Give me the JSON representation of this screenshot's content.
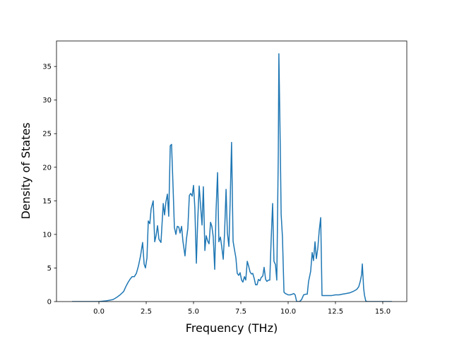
{
  "chart_data": {
    "type": "line",
    "xlabel": "Frequency (THz)",
    "ylabel": "Density of States",
    "xlim": [
      -2.24,
      16.27
    ],
    "ylim": [
      0,
      38.8
    ],
    "xticks": [
      {
        "value": 0,
        "label": "0.0"
      },
      2.5,
      {
        "value": 5,
        "label": "5.0"
      },
      7.5,
      {
        "value": 10,
        "label": "10.0"
      },
      12.5,
      {
        "value": 15,
        "label": "15.0"
      }
    ],
    "yticks": [
      0,
      5,
      10,
      15,
      20,
      25,
      30,
      35
    ],
    "grid": false,
    "series": [
      {
        "color": "#1f77b4",
        "x": [
          -1.42,
          0,
          0.37,
          0.75,
          0.93,
          1.12,
          1.31,
          1.42,
          1.53,
          1.64,
          1.75,
          1.87,
          1.98,
          2.09,
          2.2,
          2.31,
          2.39,
          2.46,
          2.54,
          2.61,
          2.69,
          2.76,
          2.87,
          2.95,
          3.02,
          3.1,
          3.17,
          3.28,
          3.4,
          3.47,
          3.54,
          3.62,
          3.69,
          3.77,
          3.84,
          3.92,
          3.99,
          4.07,
          4.14,
          4.22,
          4.29,
          4.37,
          4.44,
          4.55,
          4.63,
          4.7,
          4.78,
          4.85,
          4.93,
          5.0,
          5.07,
          5.15,
          5.22,
          5.3,
          5.37,
          5.45,
          5.52,
          5.6,
          5.67,
          5.75,
          5.82,
          5.9,
          5.97,
          6.04,
          6.12,
          6.19,
          6.27,
          6.34,
          6.42,
          6.49,
          6.57,
          6.64,
          6.72,
          6.79,
          6.87,
          6.94,
          7.01,
          7.09,
          7.16,
          7.24,
          7.31,
          7.39,
          7.46,
          7.54,
          7.61,
          7.69,
          7.76,
          7.84,
          7.91,
          7.99,
          8.06,
          8.13,
          8.21,
          8.28,
          8.36,
          8.43,
          8.51,
          8.58,
          8.66,
          8.73,
          8.81,
          8.88,
          8.96,
          9.03,
          9.1,
          9.18,
          9.25,
          9.33,
          9.4,
          9.48,
          9.51,
          9.59,
          9.63,
          9.7,
          9.78,
          9.85,
          9.93,
          10.0,
          10.11,
          10.22,
          10.3,
          10.37,
          10.45,
          10.6,
          10.71,
          10.82,
          10.93,
          11.01,
          11.08,
          11.19,
          11.27,
          11.34,
          11.42,
          11.49,
          11.57,
          11.64,
          11.72,
          11.79,
          11.94,
          12.31,
          12.5,
          12.69,
          12.87,
          13.06,
          13.25,
          13.43,
          13.62,
          13.73,
          13.81,
          13.88,
          13.92,
          13.99,
          14.03,
          14.1,
          14.18,
          15.48
        ],
        "values": [
          0,
          0,
          0.1,
          0.3,
          0.6,
          1.0,
          1.5,
          2.2,
          2.8,
          3.3,
          3.7,
          3.7,
          4.2,
          5.3,
          6.8,
          8.8,
          5.6,
          5.0,
          6.5,
          12.0,
          11.6,
          13.8,
          15.0,
          8.9,
          9.8,
          11.3,
          9.3,
          8.8,
          14.6,
          12.9,
          14.8,
          16.0,
          12.7,
          23.2,
          23.4,
          17.0,
          11.0,
          10.0,
          11.2,
          11.1,
          10.2,
          11.2,
          9.0,
          6.8,
          9.4,
          10.9,
          15.8,
          16.1,
          15.7,
          17.3,
          14.0,
          5.7,
          11.9,
          17.2,
          14.4,
          11.4,
          17.1,
          7.6,
          9.8,
          9.0,
          8.6,
          11.8,
          11.2,
          9.7,
          4.8,
          13.4,
          19.2,
          8.9,
          9.6,
          8.2,
          6.3,
          10.2,
          16.7,
          10.2,
          8.2,
          15.3,
          23.7,
          9.0,
          7.8,
          6.5,
          4.2,
          3.9,
          4.3,
          3.2,
          2.9,
          3.7,
          3.2,
          6.0,
          5.3,
          4.4,
          4.1,
          4.2,
          3.4,
          2.5,
          2.5,
          3.3,
          3.1,
          3.6,
          3.8,
          5.1,
          3.3,
          3.0,
          3.2,
          3.2,
          9.0,
          14.6,
          6.0,
          5.5,
          3.2,
          22.0,
          36.9,
          22.0,
          13.0,
          9.6,
          1.4,
          1.2,
          1.1,
          1.0,
          1.0,
          1.1,
          1.2,
          1.0,
          0,
          0,
          0.3,
          1.0,
          1.1,
          1.1,
          3.0,
          4.5,
          7.3,
          6.1,
          8.9,
          6.4,
          8.0,
          10.5,
          12.5,
          0.9,
          0.9,
          0.9,
          1.0,
          1.0,
          1.1,
          1.2,
          1.3,
          1.5,
          1.8,
          2.2,
          3.0,
          4.0,
          5.6,
          2.0,
          1.0,
          0.1,
          0,
          0
        ]
      }
    ]
  }
}
